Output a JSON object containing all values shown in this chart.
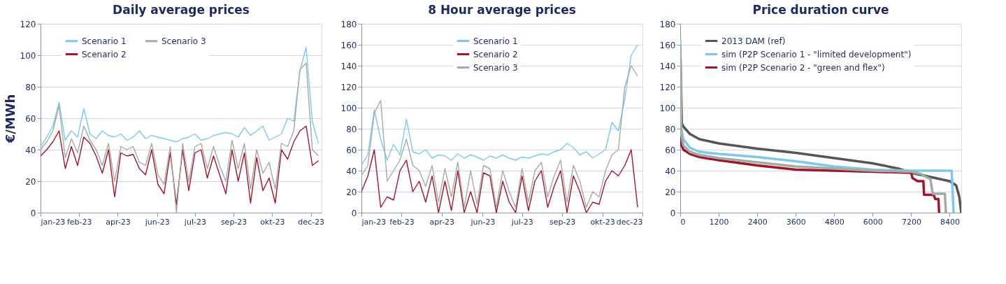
{
  "chart_data": [
    {
      "type": "line",
      "title": "Daily average prices",
      "ylabel": "€/MWh",
      "grid": "y",
      "legend": "top left",
      "ylim": [
        0,
        120
      ],
      "yticks": [
        0,
        20,
        40,
        60,
        80,
        100,
        120
      ],
      "xlim": [
        "2023-01-01",
        "2023-12-31"
      ],
      "xticks": [
        {
          "value": "2023-01-01",
          "label": "jan-23"
        },
        {
          "value": "2023-02-20",
          "label": "feb-23"
        },
        {
          "value": "2023-04-11",
          "label": "apr-23"
        },
        {
          "value": "2023-06-01",
          "label": "jun-23"
        },
        {
          "value": "2023-07-20",
          "label": "jul-23"
        },
        {
          "value": "2023-09-08",
          "label": "sep-23"
        },
        {
          "value": "2023-10-28",
          "label": "okt-23"
        },
        {
          "value": "2023-12-17",
          "label": "dec-23"
        }
      ],
      "x": [
        "2023-01-01",
        "2023-01-09",
        "2023-01-17",
        "2023-01-25",
        "2023-02-02",
        "2023-02-10",
        "2023-02-18",
        "2023-02-26",
        "2023-03-06",
        "2023-03-14",
        "2023-03-22",
        "2023-03-30",
        "2023-04-07",
        "2023-04-15",
        "2023-04-23",
        "2023-05-01",
        "2023-05-09",
        "2023-05-17",
        "2023-05-25",
        "2023-06-02",
        "2023-06-10",
        "2023-06-18",
        "2023-06-26",
        "2023-07-04",
        "2023-07-12",
        "2023-07-20",
        "2023-07-28",
        "2023-08-05",
        "2023-08-13",
        "2023-08-21",
        "2023-08-29",
        "2023-09-06",
        "2023-09-14",
        "2023-09-22",
        "2023-09-30",
        "2023-10-08",
        "2023-10-16",
        "2023-10-24",
        "2023-11-01",
        "2023-11-09",
        "2023-11-17",
        "2023-11-25",
        "2023-12-03",
        "2023-12-11",
        "2023-12-19",
        "2023-12-27"
      ],
      "series": [
        {
          "name": "Scenario 1",
          "color": "#7ec8ee",
          "values": [
            42,
            48,
            55,
            70,
            46,
            52,
            48,
            66,
            50,
            47,
            52,
            49,
            48,
            50,
            46,
            48,
            52,
            47,
            49,
            48,
            47,
            46,
            45,
            47,
            48,
            50,
            46,
            47,
            49,
            50,
            51,
            50,
            48,
            54,
            49,
            52,
            55,
            46,
            48,
            50,
            60,
            58,
            90,
            105,
            58,
            44
          ]
        },
        {
          "name": "Scenario 2",
          "color": "#a0152a",
          "values": [
            36,
            40,
            45,
            52,
            28,
            42,
            30,
            48,
            44,
            36,
            25,
            40,
            10,
            38,
            36,
            37,
            28,
            24,
            40,
            18,
            12,
            38,
            5,
            40,
            14,
            38,
            40,
            22,
            36,
            24,
            12,
            40,
            20,
            38,
            6,
            35,
            14,
            22,
            6,
            40,
            34,
            45,
            52,
            55,
            30,
            33
          ]
        },
        {
          "name": "Scenario 3",
          "color": "#a3aba6",
          "values": [
            40,
            45,
            52,
            68,
            35,
            47,
            38,
            55,
            46,
            40,
            30,
            44,
            20,
            42,
            40,
            42,
            32,
            30,
            44,
            24,
            18,
            42,
            0,
            44,
            20,
            42,
            44,
            28,
            42,
            30,
            20,
            46,
            28,
            44,
            15,
            40,
            25,
            32,
            15,
            44,
            42,
            52,
            91,
            95,
            40,
            36
          ]
        }
      ]
    },
    {
      "type": "line",
      "title": "8 Hour average prices",
      "grid": "y",
      "legend": "top",
      "ylim": [
        0,
        180
      ],
      "yticks": [
        0,
        20,
        40,
        60,
        80,
        100,
        120,
        140,
        160,
        180
      ],
      "xlim": [
        "2023-01-01",
        "2023-12-17"
      ],
      "xticks": [
        {
          "value": "2023-01-01",
          "label": "jan-23"
        },
        {
          "value": "2023-02-20",
          "label": "feb-23"
        },
        {
          "value": "2023-04-11",
          "label": "apr-23"
        },
        {
          "value": "2023-06-01",
          "label": "jun-23"
        },
        {
          "value": "2023-07-20",
          "label": "jul-23"
        },
        {
          "value": "2023-09-08",
          "label": "sep-23"
        },
        {
          "value": "2023-10-28",
          "label": "okt-23"
        },
        {
          "value": "2023-12-17",
          "label": "dec-23"
        }
      ],
      "x": [
        "2023-01-01",
        "2023-01-09",
        "2023-01-17",
        "2023-01-25",
        "2023-02-02",
        "2023-02-10",
        "2023-02-18",
        "2023-02-26",
        "2023-03-06",
        "2023-03-14",
        "2023-03-22",
        "2023-03-30",
        "2023-04-07",
        "2023-04-15",
        "2023-04-23",
        "2023-05-01",
        "2023-05-09",
        "2023-05-17",
        "2023-05-25",
        "2023-06-02",
        "2023-06-10",
        "2023-06-18",
        "2023-06-26",
        "2023-07-04",
        "2023-07-12",
        "2023-07-20",
        "2023-07-28",
        "2023-08-05",
        "2023-08-13",
        "2023-08-21",
        "2023-08-29",
        "2023-09-06",
        "2023-09-14",
        "2023-09-22",
        "2023-09-30",
        "2023-10-08",
        "2023-10-16",
        "2023-10-24",
        "2023-11-01",
        "2023-11-09",
        "2023-11-17",
        "2023-11-25",
        "2023-12-03",
        "2023-12-11"
      ],
      "series": [
        {
          "name": "Scenario 1",
          "color": "#7ec8ee",
          "values": [
            45,
            55,
            98,
            70,
            50,
            65,
            55,
            89,
            58,
            56,
            60,
            52,
            55,
            54,
            50,
            56,
            52,
            55,
            53,
            50,
            54,
            52,
            55,
            52,
            50,
            53,
            52,
            54,
            56,
            55,
            58,
            60,
            66,
            62,
            55,
            58,
            52,
            56,
            60,
            86,
            78,
            108,
            150,
            160
          ]
        },
        {
          "name": "Scenario 2",
          "color": "#a0152a",
          "values": [
            20,
            35,
            60,
            5,
            15,
            12,
            40,
            50,
            20,
            30,
            10,
            35,
            0,
            30,
            2,
            40,
            0,
            20,
            0,
            38,
            35,
            0,
            30,
            10,
            0,
            35,
            2,
            30,
            40,
            5,
            25,
            40,
            0,
            35,
            20,
            0,
            10,
            8,
            30,
            40,
            35,
            45,
            60,
            5
          ]
        },
        {
          "name": "Scenario 3",
          "color": "#a3aba6",
          "values": [
            35,
            45,
            95,
            107,
            30,
            40,
            50,
            70,
            45,
            40,
            25,
            45,
            10,
            42,
            15,
            48,
            5,
            40,
            8,
            45,
            42,
            5,
            40,
            20,
            5,
            42,
            10,
            40,
            48,
            15,
            35,
            50,
            10,
            45,
            30,
            5,
            20,
            15,
            40,
            55,
            60,
            120,
            140,
            130
          ]
        }
      ]
    },
    {
      "type": "line",
      "title": "Price duration curve",
      "grid": "y",
      "legend": "top left",
      "ylim": [
        0,
        180
      ],
      "yticks": [
        0,
        20,
        40,
        60,
        80,
        100,
        120,
        140,
        160,
        180
      ],
      "xlim": [
        0,
        8760
      ],
      "xticks": [
        0,
        1200,
        2400,
        3600,
        4800,
        6000,
        7200,
        8400
      ],
      "series": [
        {
          "name": "2013 DAM (ref)",
          "color": "#555555",
          "x": [
            0,
            50,
            100,
            300,
            600,
            1200,
            2400,
            3600,
            4800,
            6000,
            6800,
            7200,
            7800,
            8400,
            8600,
            8700,
            8760
          ],
          "values": [
            160,
            85,
            82,
            75,
            70,
            66,
            61,
            57,
            52,
            47,
            42,
            38,
            34,
            30,
            26,
            15,
            0
          ]
        },
        {
          "name": "sim (P2P Scenario 1 - \"limited development\")",
          "color": "#7ec8ee",
          "x": [
            0,
            30,
            100,
            300,
            600,
            1200,
            2400,
            3600,
            4800,
            6000,
            7200,
            8000,
            8460,
            8480,
            8520
          ],
          "values": [
            165,
            80,
            70,
            62,
            58,
            56,
            53,
            49,
            44,
            41,
            40,
            40,
            40,
            28,
            0
          ]
        },
        {
          "name": "sim (P2P Scenario 2 - \"green and flex\")",
          "color": "#a0152a",
          "x": [
            0,
            30,
            100,
            300,
            600,
            1200,
            2400,
            3600,
            4800,
            6000,
            7200,
            7240,
            7400,
            7580,
            7600,
            7900,
            7950,
            8050,
            8070
          ],
          "values": [
            75,
            65,
            60,
            56,
            53,
            50,
            45,
            41,
            40,
            39,
            38,
            33,
            30,
            30,
            17,
            17,
            13,
            13,
            0
          ]
        },
        {
          "color": "#a3aba6",
          "x": [
            0,
            30,
            100,
            300,
            600,
            1200,
            2400,
            3600,
            4800,
            6000,
            7200,
            7500,
            7600,
            7800,
            7870,
            8250,
            8280
          ],
          "values": [
            160,
            75,
            64,
            58,
            55,
            52,
            48,
            44,
            42,
            40,
            39,
            37,
            35,
            32,
            18,
            18,
            0
          ]
        }
      ]
    }
  ]
}
